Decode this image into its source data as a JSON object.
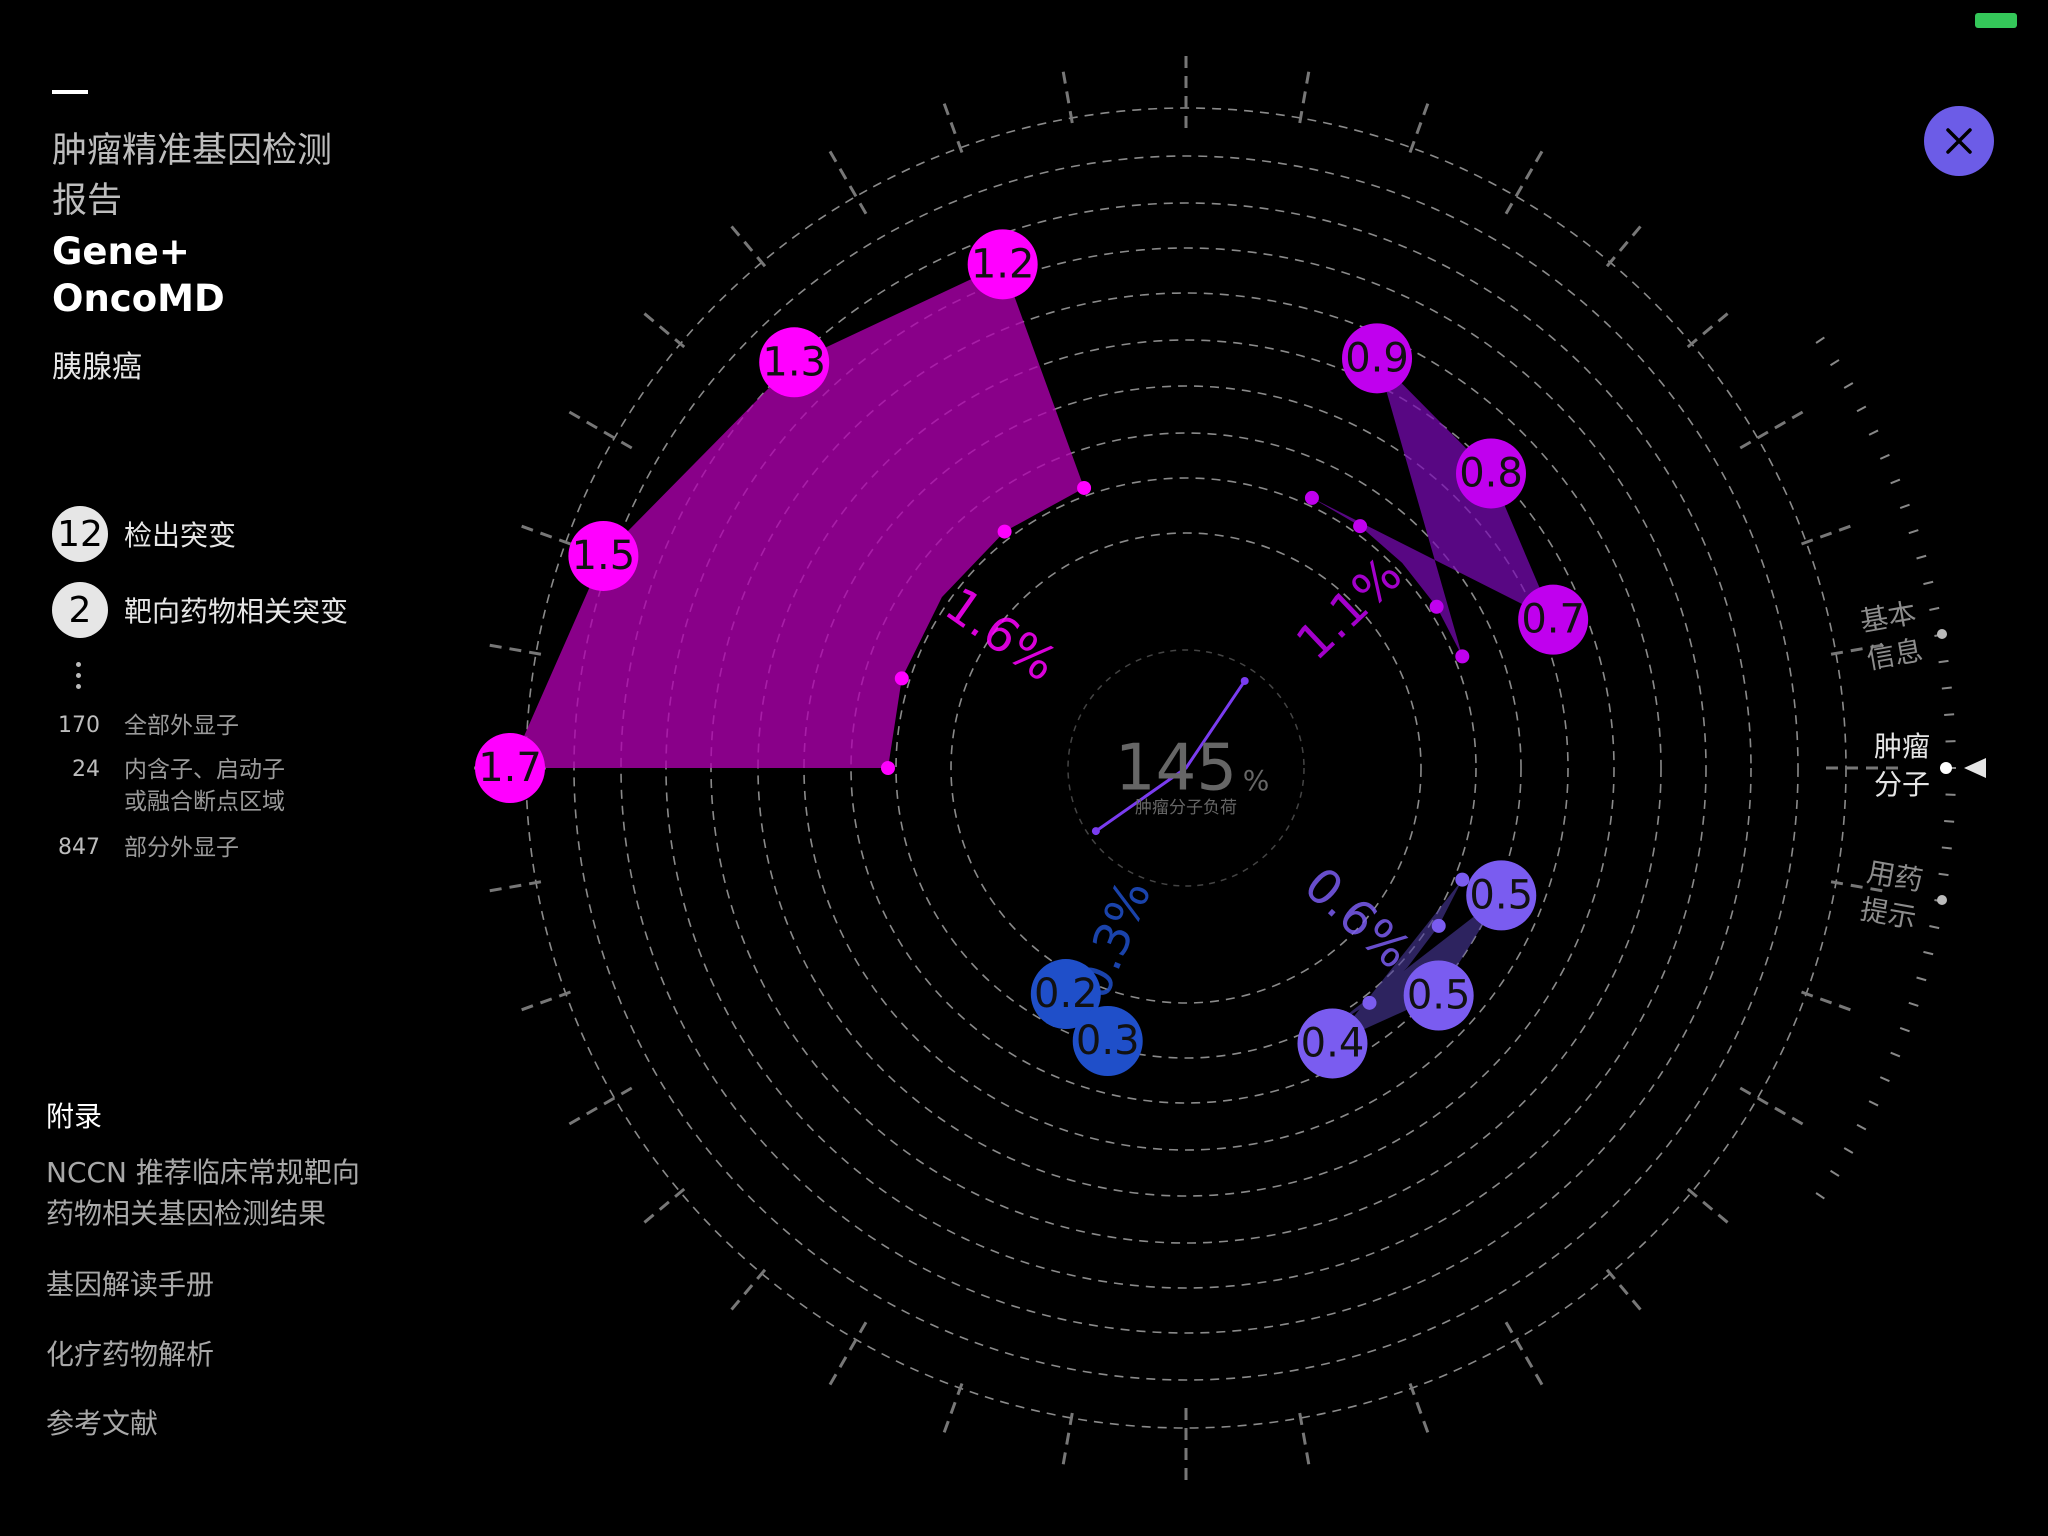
{
  "report": {
    "title": "肿瘤精准基因检测报告",
    "title_line1": "肿瘤精准基因检测",
    "title_line2": "报告",
    "brand_line1": "Gene+",
    "brand_line2": "OncoMD",
    "cancer_type": "胰腺癌"
  },
  "counts": [
    {
      "value": "12",
      "label": "检出突变"
    },
    {
      "value": "2",
      "label": "靶向药物相关突变"
    }
  ],
  "stats": [
    {
      "value": "170",
      "label": "全部外显子"
    },
    {
      "value": "24",
      "label_line1": "内含子、启动子",
      "label_line2": "或融合断点区域"
    },
    {
      "value": "847",
      "label": "部分外显子"
    }
  ],
  "appendix": {
    "title": "附录",
    "links": [
      {
        "line1": "NCCN 推荐临床常规靶向",
        "line2": "药物相关基因检测结果"
      },
      {
        "line1": "基因解读手册"
      },
      {
        "line1": "化疗药物解析"
      },
      {
        "line1": "参考文献"
      }
    ]
  },
  "right_nav": {
    "items": [
      {
        "line1": "基本",
        "line2": "信息",
        "active": false
      },
      {
        "line1": "肿瘤",
        "line2": "分子",
        "active": true
      },
      {
        "line1": "用药",
        "line2": "提示",
        "active": false
      }
    ]
  },
  "icons": {
    "close": "close-icon",
    "nav_pointer": "triangle-left-icon",
    "more": "vertical-dots-icon"
  },
  "colors": {
    "magenta": "#ff00ff",
    "purple": "#c000ee",
    "violet": "#7a5cf0",
    "blue": "#1f4fc9",
    "accent": "#6c5ce7",
    "battery": "#34c759"
  },
  "chart_data": {
    "type": "radar-sector",
    "center_value": "145",
    "center_unit": "%",
    "center_label": "肿瘤分子负荷",
    "groups": [
      {
        "percent": "1.6%",
        "color": "#ff00ff",
        "values": [
          1.2,
          1.3,
          1.5,
          1.7
        ]
      },
      {
        "percent": "1.1%",
        "color": "#c000ee",
        "values": [
          0.9,
          0.8,
          0.7
        ]
      },
      {
        "percent": "0.6%",
        "color": "#7a5cf0",
        "values": [
          0.5,
          0.5,
          0.4
        ]
      },
      {
        "percent": "0.3%",
        "color": "#1f4fc9",
        "values": [
          0.2,
          0.3
        ]
      }
    ]
  }
}
